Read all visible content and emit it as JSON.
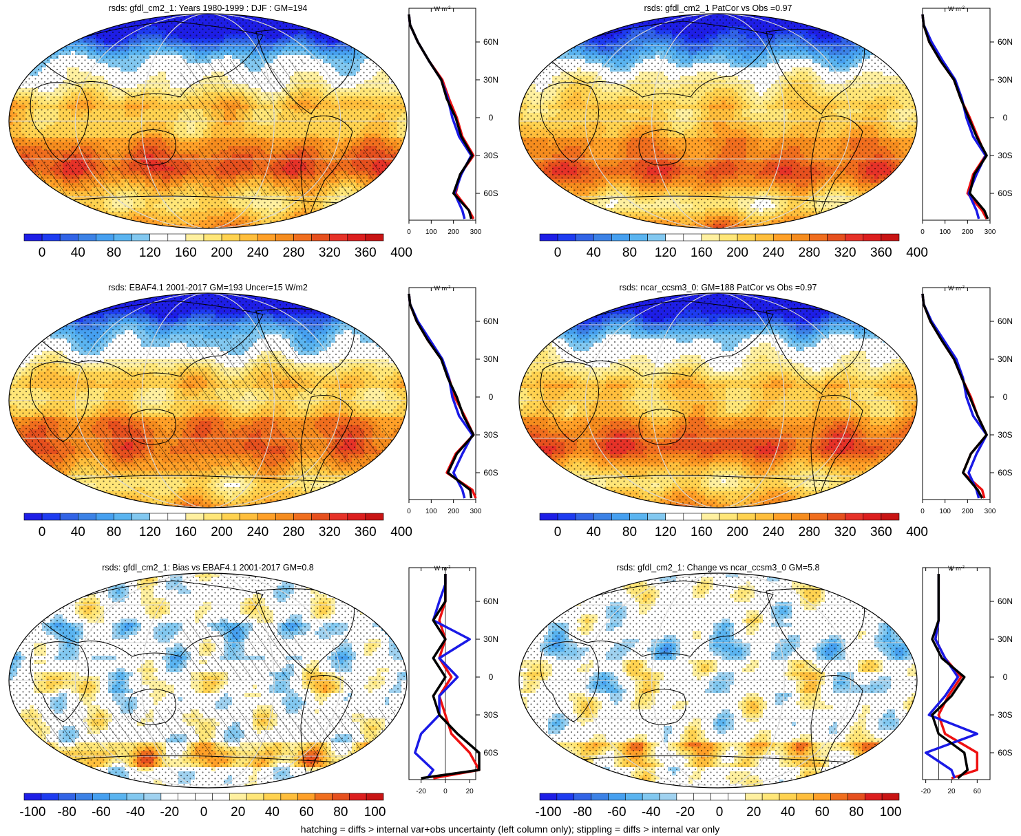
{
  "footer": "hatching = diffs > internal var+obs uncertainty (left column only); stippling = diffs > internal var only",
  "lat_labels": [
    "60N",
    "30N",
    "0",
    "30S",
    "60S"
  ],
  "profile_unit": "W m-2",
  "panels": [
    {
      "title": "rsds: gfdl_cm2_1: Years 1980-1999 : DJF : GM=194",
      "kind": "abs",
      "hatch": true,
      "colorbar": [
        "0",
        "40",
        "80",
        "120",
        "160",
        "200",
        "240",
        "280",
        "320",
        "360",
        "400"
      ],
      "profile_ticks": [
        "0",
        "100",
        "200",
        "300"
      ]
    },
    {
      "title": "rsds: gfdl_cm2_1 PatCor vs Obs =0.97",
      "kind": "abs",
      "hatch": false,
      "colorbar": [
        "0",
        "40",
        "80",
        "120",
        "160",
        "200",
        "240",
        "280",
        "320",
        "360",
        "400"
      ],
      "profile_ticks": [
        "0",
        "100",
        "200",
        "300"
      ]
    },
    {
      "title": "rsds: EBAF4.1 2001-2017 GM=193 Uncer=15 W/m2",
      "kind": "abs",
      "hatch": true,
      "colorbar": [
        "0",
        "40",
        "80",
        "120",
        "160",
        "200",
        "240",
        "280",
        "320",
        "360",
        "400"
      ],
      "profile_ticks": [
        "0",
        "100",
        "200",
        "300"
      ]
    },
    {
      "title": "rsds: ncar_ccsm3_0: GM=188 PatCor vs Obs =0.97",
      "kind": "abs",
      "hatch": false,
      "colorbar": [
        "0",
        "40",
        "80",
        "120",
        "160",
        "200",
        "240",
        "280",
        "320",
        "360",
        "400"
      ],
      "profile_ticks": [
        "0",
        "100",
        "200",
        "300"
      ]
    },
    {
      "title": "rsds: gfdl_cm2_1: Bias vs EBAF4.1 2001-2017 GM=0.8",
      "kind": "diff",
      "hatch": true,
      "colorbar": [
        "-100",
        "-80",
        "-60",
        "-40",
        "-20",
        "0",
        "20",
        "40",
        "60",
        "80",
        "100"
      ],
      "profile_ticks": [
        "-20",
        "0",
        "20"
      ]
    },
    {
      "title": "rsds: gfdl_cm2_1: Change vs ncar_ccsm3_0 GM=5.8",
      "kind": "diff",
      "hatch": false,
      "colorbar": [
        "-100",
        "-80",
        "-60",
        "-40",
        "-20",
        "0",
        "20",
        "40",
        "60",
        "80",
        "100"
      ],
      "profile_ticks": [
        "-20",
        "20",
        "60"
      ]
    }
  ],
  "colors": {
    "abs_scale": [
      "#1e1ee6",
      "#1e3cf0",
      "#3264e6",
      "#3c82e6",
      "#46a0f0",
      "#5ab4f0",
      "#82c8f0",
      "#ffffff",
      "#ffffff",
      "#fff0a0",
      "#ffe678",
      "#ffd250",
      "#ffbe3c",
      "#ffa028",
      "#f58c1e",
      "#f06e1e",
      "#e6501e",
      "#e63228",
      "#dc1e1e",
      "#c81414"
    ],
    "diff_scale": [
      "#1e1ee6",
      "#1e3cf0",
      "#3264e6",
      "#3c82e6",
      "#46a0f0",
      "#5ab4f0",
      "#82c8f0",
      "#a0d2f0",
      "#ffffff",
      "#ffffff",
      "#ffffff",
      "#ffffff",
      "#fff0a0",
      "#ffe678",
      "#ffd250",
      "#ffbe3c",
      "#ffa028",
      "#f06e1e",
      "#e6501e",
      "#dc1e1e",
      "#c81414"
    ],
    "line_model": "#000000",
    "line_obs": "#ee1111",
    "line_other": "#1a1ae6"
  },
  "chart_data": [
    {
      "type": "heatmap",
      "title": "rsds: gfdl_cm2_1: Years 1980-1999 : DJF : GM=194",
      "colorbar_range": [
        0,
        400
      ],
      "zonal_profile": {
        "lat": [
          -90,
          -75,
          -60,
          -45,
          -30,
          -15,
          0,
          15,
          30,
          45,
          60,
          75,
          90
        ],
        "series": [
          {
            "values": [
              290,
              270,
              210,
              230,
              290,
              240,
              215,
              180,
              150,
              90,
              40,
              5,
              0
            ]
          },
          {
            "values": [
              250,
              240,
              205,
              235,
              280,
              225,
              195,
              175,
              145,
              90,
              40,
              5,
              0
            ]
          },
          {
            "values": [
              280,
              270,
              200,
              230,
              285,
              235,
              210,
              170,
              145,
              90,
              40,
              5,
              0
            ]
          }
        ]
      }
    },
    {
      "type": "heatmap",
      "title": "rsds: gfdl_cm2_1 PatCor vs Obs =0.97",
      "colorbar_range": [
        0,
        400
      ],
      "zonal_profile": {
        "lat": [
          -90,
          -75,
          -60,
          -45,
          -30,
          -15,
          0,
          15,
          30,
          45,
          60,
          75,
          90
        ],
        "series": [
          {
            "values": [
              285,
              265,
              200,
              225,
              280,
              245,
              210,
              170,
              140,
              80,
              30,
              5,
              0
            ]
          },
          {
            "values": [
              250,
              240,
              205,
              240,
              280,
              225,
              195,
              175,
              145,
              90,
              40,
              5,
              0
            ]
          },
          {
            "values": [
              290,
              275,
              210,
              230,
              285,
              240,
              205,
              170,
              140,
              80,
              30,
              5,
              0
            ]
          }
        ]
      }
    },
    {
      "type": "heatmap",
      "title": "rsds: EBAF4.1 2001-2017 GM=193 Uncer=15 W/m2",
      "colorbar_range": [
        0,
        400
      ],
      "zonal_profile": {
        "lat": [
          -90,
          -75,
          -60,
          -45,
          -30,
          -15,
          0,
          15,
          30,
          45,
          60,
          75,
          90
        ],
        "series": [
          {
            "values": [
              300,
              285,
              170,
              210,
              290,
              250,
              205,
              180,
              145,
              85,
              35,
              5,
              0
            ]
          },
          {
            "values": [
              250,
              240,
              200,
              240,
              285,
              225,
              195,
              180,
              150,
              95,
              40,
              5,
              0
            ]
          },
          {
            "values": [
              280,
              275,
              175,
              215,
              290,
              245,
              215,
              175,
              145,
              85,
              35,
              5,
              0
            ]
          }
        ]
      }
    },
    {
      "type": "heatmap",
      "title": "rsds: ncar_ccsm3_0: GM=188 PatCor vs Obs =0.97",
      "colorbar_range": [
        0,
        400
      ],
      "zonal_profile": {
        "lat": [
          -90,
          -75,
          -60,
          -45,
          -30,
          -15,
          0,
          15,
          30,
          45,
          60,
          75,
          90
        ],
        "series": [
          {
            "values": [
              275,
              265,
              180,
              215,
              285,
              245,
              215,
              175,
              140,
              85,
              35,
              5,
              0
            ]
          },
          {
            "values": [
              250,
              240,
              205,
              240,
              285,
              225,
              195,
              180,
              150,
              95,
              40,
              5,
              0
            ]
          },
          {
            "values": [
              265,
              245,
              180,
              215,
              285,
              245,
              210,
              175,
              140,
              85,
              35,
              5,
              0
            ]
          }
        ]
      }
    },
    {
      "type": "heatmap",
      "title": "rsds: gfdl_cm2_1: Bias vs EBAF4.1 2001-2017 GM=0.8",
      "colorbar_range": [
        -100,
        100
      ],
      "zonal_profile": {
        "lat": [
          -90,
          -75,
          -60,
          -45,
          -30,
          -15,
          0,
          15,
          30,
          45,
          60,
          75,
          90
        ],
        "series": [
          {
            "values": [
              -10,
              35,
              20,
              5,
              0,
              -5,
              5,
              -5,
              0,
              -5,
              0,
              0,
              0
            ]
          },
          {
            "values": [
              -15,
              -10,
              -25,
              -20,
              -5,
              -5,
              10,
              -5,
              20,
              -10,
              -5,
              0,
              0
            ]
          },
          {
            "values": [
              -20,
              30,
              30,
              10,
              -5,
              -10,
              0,
              -10,
              0,
              -10,
              0,
              0,
              0
            ]
          }
        ]
      }
    },
    {
      "type": "heatmap",
      "title": "rsds: gfdl_cm2_1: Change vs ncar_ccsm3_0 GM=5.8",
      "colorbar_range": [
        -100,
        100
      ],
      "zonal_profile": {
        "lat": [
          -90,
          -75,
          -60,
          -45,
          -30,
          -15,
          0,
          15,
          30,
          45,
          60,
          75,
          90
        ],
        "series": [
          {
            "values": [
              20,
              60,
              60,
              10,
              0,
              15,
              35,
              10,
              -5,
              0,
              0,
              0,
              0
            ]
          },
          {
            "values": [
              25,
              20,
              -20,
              60,
              -15,
              10,
              30,
              10,
              -5,
              0,
              0,
              0,
              0
            ]
          },
          {
            "values": [
              30,
              45,
              40,
              0,
              -10,
              20,
              40,
              5,
              -10,
              0,
              0,
              0,
              0
            ]
          }
        ]
      }
    }
  ]
}
